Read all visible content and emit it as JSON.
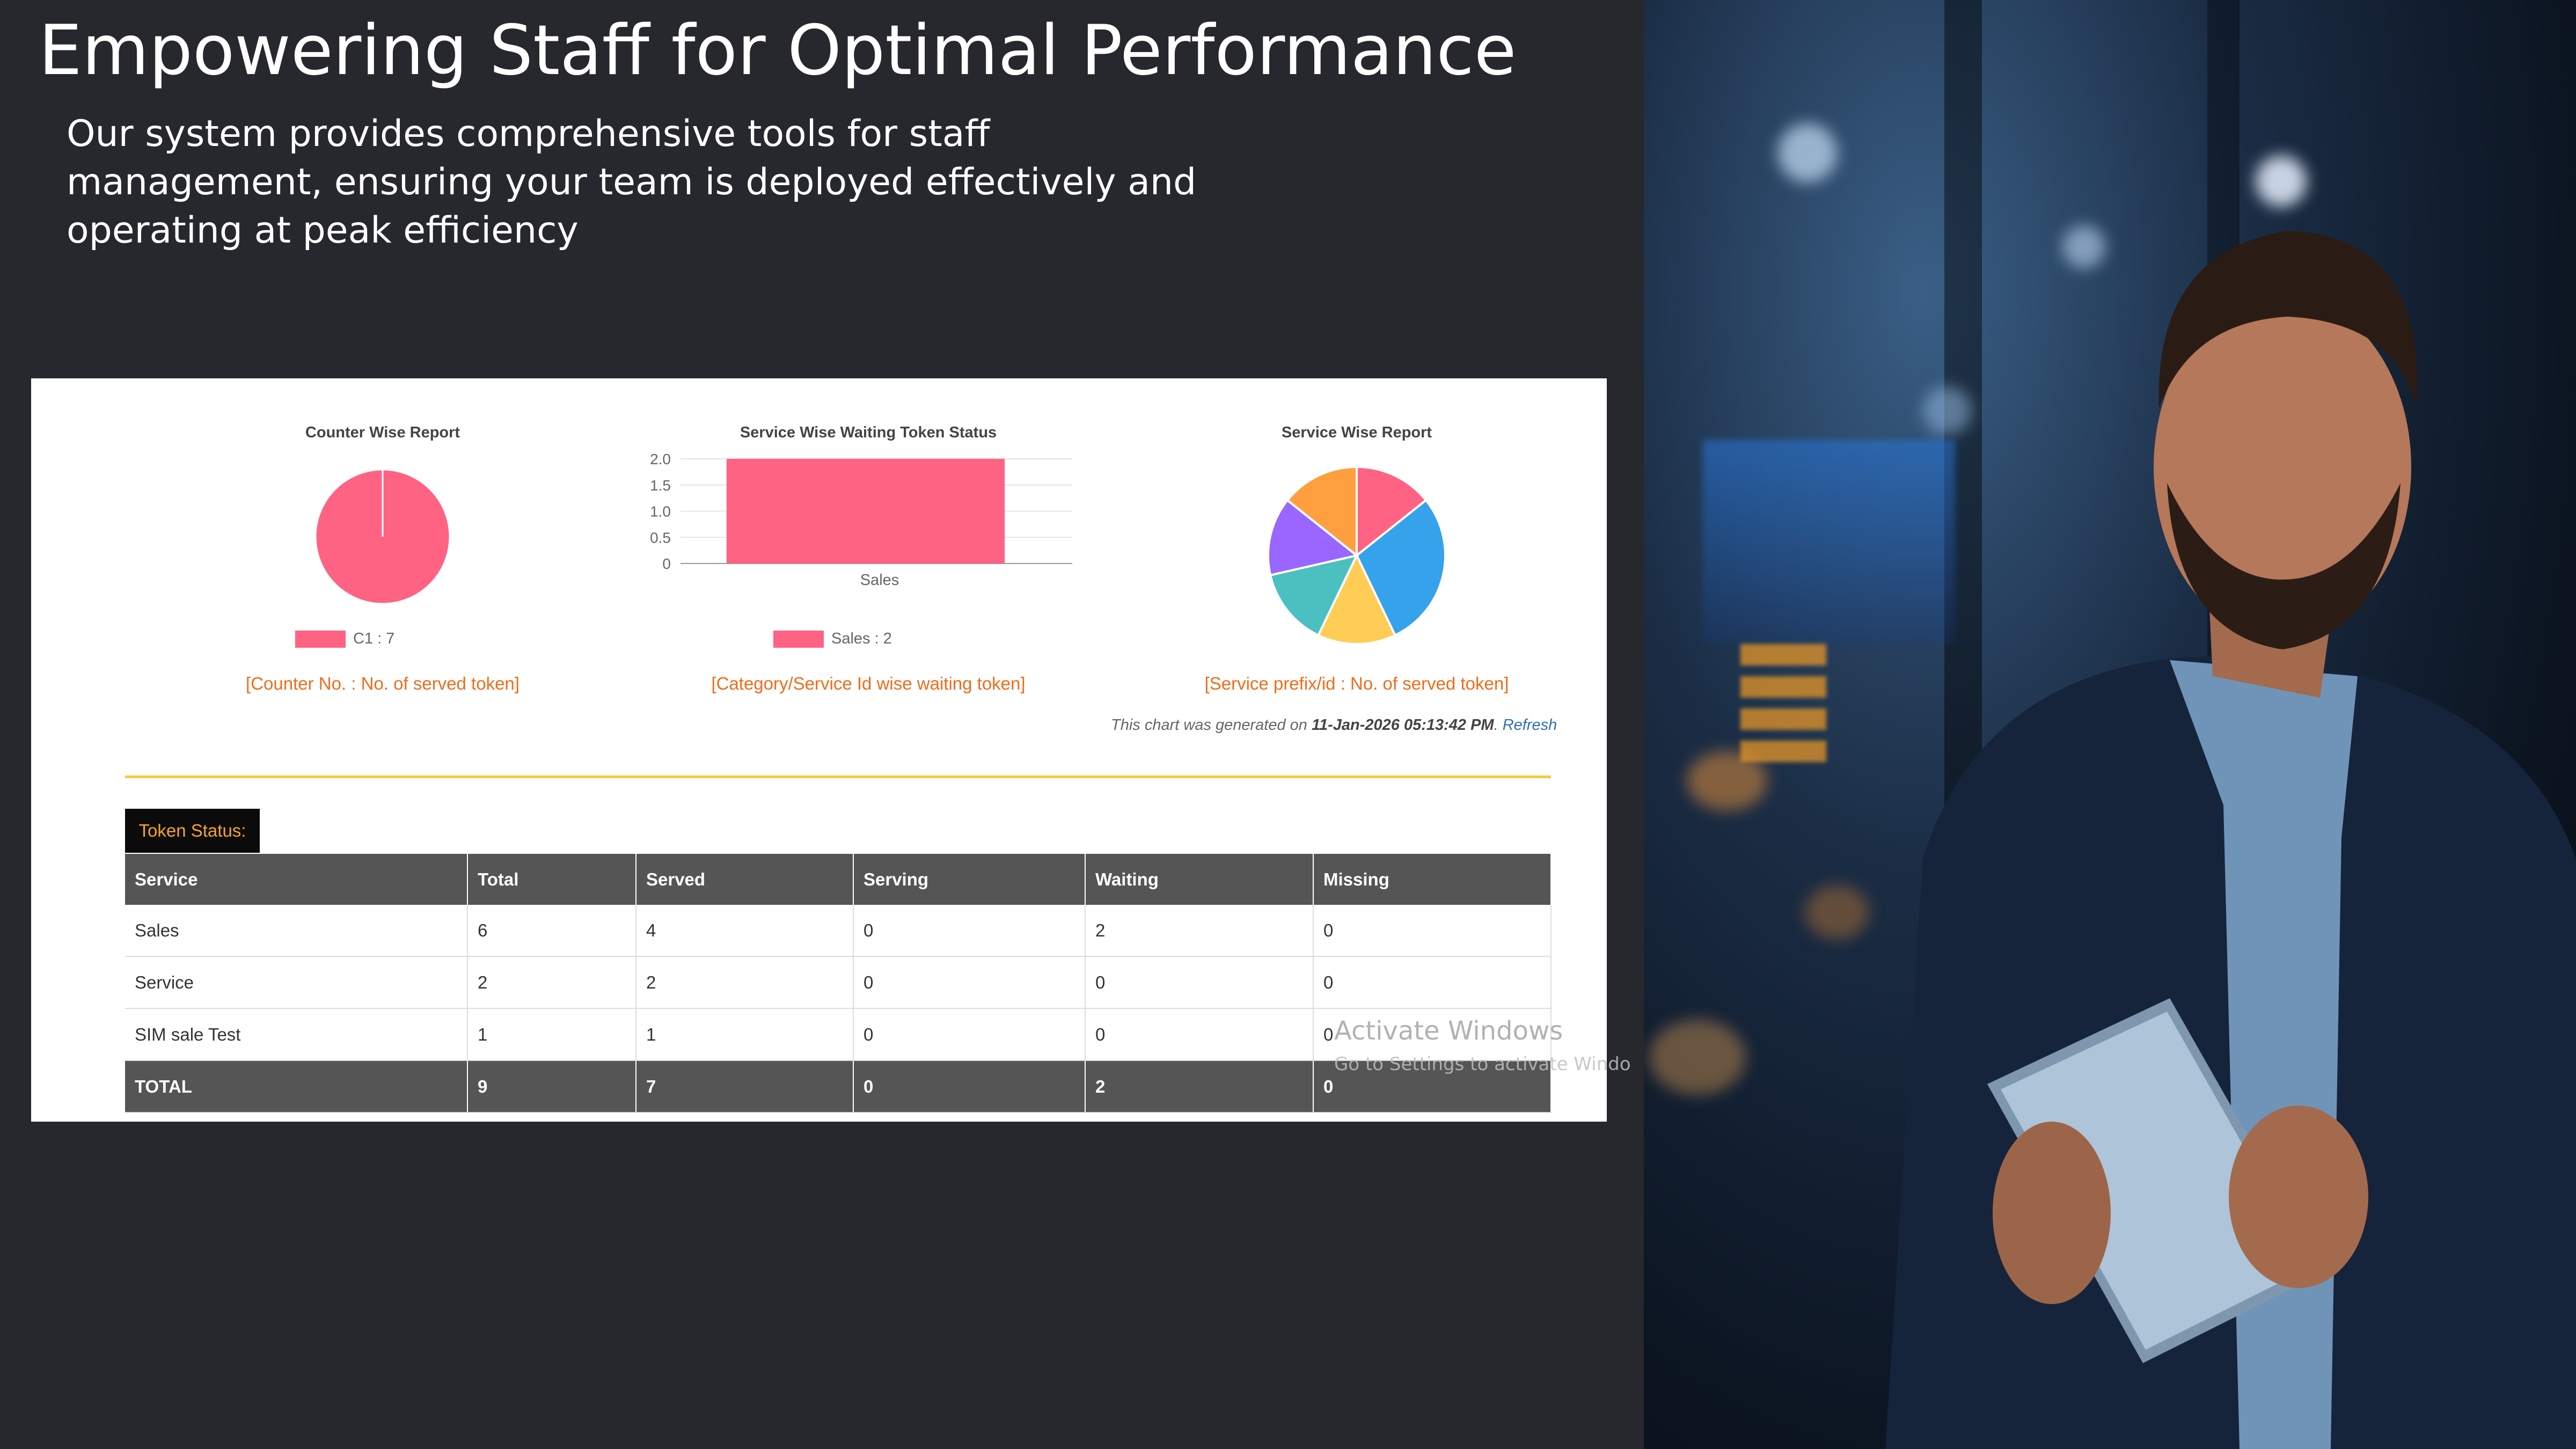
{
  "slide": {
    "title": "Empowering Staff for Optimal Performance",
    "subtitle": "Our system provides comprehensive tools for staff management, ensuring your team is deployed effectively and operating at peak efficiency"
  },
  "colors": {
    "background": "#26282d",
    "pink": "#ff6384",
    "blue": "#36a2eb",
    "yellow": "#ffcd56",
    "teal": "#4bc0c0",
    "purple": "#9966ff",
    "orange": "#ff9f40",
    "caption_orange": "#ef6c1a",
    "rule_yellow": "#f1cc3a",
    "table_header": "#555555"
  },
  "chart_data": [
    {
      "type": "pie",
      "title": "Counter Wise Report",
      "categories": [
        "C1"
      ],
      "values": [
        7
      ],
      "legend": [
        "C1 : 7"
      ],
      "legend_position": "bottom",
      "caption": "[Counter No. : No. of served token]"
    },
    {
      "type": "bar",
      "title": "Service Wise Waiting Token Status",
      "categories": [
        "Sales"
      ],
      "values": [
        2
      ],
      "ylim": [
        0,
        2.0
      ],
      "yticks": [
        "2.0",
        "1.5",
        "1.0",
        "0.5",
        "0"
      ],
      "ytick_values": [
        2.0,
        1.5,
        1.0,
        0.5,
        0
      ],
      "legend": [
        "Sales : 2"
      ],
      "legend_position": "bottom",
      "grid": true,
      "caption": "[Category/Service Id wise waiting token]"
    },
    {
      "type": "pie",
      "title": "Service Wise Report",
      "slice_colors": [
        "#ff6384",
        "#36a2eb",
        "#ffcd56",
        "#4bc0c0",
        "#9966ff",
        "#ff9f40"
      ],
      "values": [
        1,
        2,
        1,
        1,
        1,
        1
      ],
      "caption": "[Service prefix/id : No. of served token]"
    }
  ],
  "report": {
    "generated_prefix": "This chart was generated on ",
    "generated_time": "11-Jan-2026 05:13:42 PM",
    "refresh_label": "Refresh",
    "token_status_label": "Token Status:",
    "table": {
      "headers": [
        "Service",
        "Total",
        "Served",
        "Serving",
        "Waiting",
        "Missing"
      ],
      "rows": [
        [
          "Sales",
          "6",
          "4",
          "0",
          "2",
          "0"
        ],
        [
          "Service",
          "2",
          "2",
          "0",
          "0",
          "0"
        ],
        [
          "SIM sale Test",
          "1",
          "1",
          "0",
          "0",
          "0"
        ]
      ],
      "total_row": [
        "TOTAL",
        "9",
        "7",
        "0",
        "2",
        "0"
      ]
    }
  },
  "watermark": {
    "line1": "Activate Windows",
    "line2": "Go to Settings to activate Windo"
  }
}
